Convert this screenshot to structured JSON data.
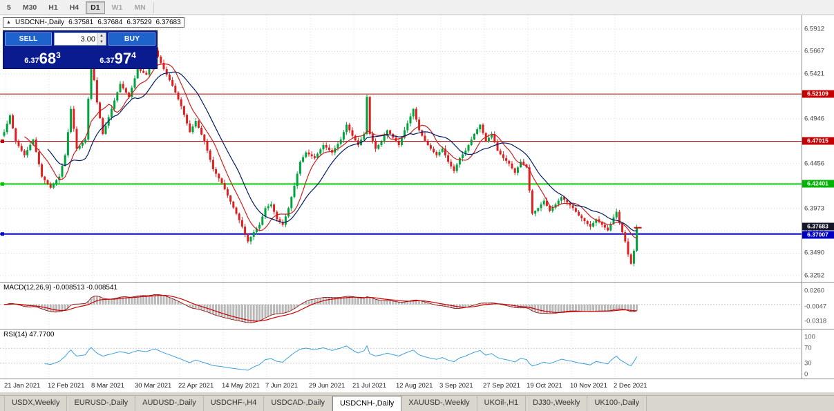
{
  "toolbar": {
    "timeframes": [
      {
        "label": "5"
      },
      {
        "label": "M30"
      },
      {
        "label": "H1"
      },
      {
        "label": "H4"
      },
      {
        "label": "D1"
      },
      {
        "label": "W1"
      },
      {
        "label": "MN"
      }
    ]
  },
  "info_bar": {
    "symbol_line": "USDCNH-,Daily",
    "open": "6.37581",
    "high": "6.37684",
    "low": "6.37529",
    "close": "6.37683"
  },
  "trade_panel": {
    "sell_label": "SELL",
    "buy_label": "BUY",
    "volume": "3.00",
    "sell_price": {
      "big": "6.37",
      "pips": "68",
      "frac": "3"
    },
    "buy_price": {
      "big": "6.37",
      "pips": "97",
      "frac": "4"
    }
  },
  "price_axis": {
    "labels": [
      "6.5912",
      "6.5667",
      "6.5421",
      "6.5176",
      "6.4946",
      "6.4701",
      "6.4456",
      "6.4210",
      "6.3973",
      "6.3725",
      "6.3490",
      "6.3252"
    ],
    "badges": [
      {
        "value": "6.52109",
        "color": "#c40000"
      },
      {
        "value": "6.47015",
        "color": "#c40000"
      },
      {
        "value": "6.42401",
        "color": "#00b400"
      },
      {
        "value": "6.37683",
        "color": "#15152a"
      },
      {
        "value": "6.37007",
        "color": "#0000c4"
      }
    ]
  },
  "macd_panel": {
    "label": "MACD(12,26,9) -0.008513 -0.008541",
    "scale_labels": [
      "0.0260",
      "-0.0047",
      "-0.0318"
    ]
  },
  "rsi_panel": {
    "label": "RSI(14) 47.7700",
    "scale_labels": [
      "100",
      "70",
      "30",
      "0"
    ]
  },
  "date_axis": {
    "labels": [
      "21 Jan 2021",
      "12 Feb 2021",
      "8 Mar 2021",
      "30 Mar 2021",
      "22 Apr 2021",
      "14 May 2021",
      "7 Jun 2021",
      "29 Jun 2021",
      "21 Jul 2021",
      "12 Aug 2021",
      "3 Sep 2021",
      "27 Sep 2021",
      "19 Oct 2021",
      "10 Nov 2021",
      "2 Dec 2021"
    ]
  },
  "tabs": {
    "items": [
      "USDX,Weekly",
      "EURUSD-,Daily",
      "AUDUSD-,Daily",
      "USDCHF-,H4",
      "USDCAD-,Daily",
      "USDCNH-,Daily",
      "XAUUSD-,Weekly",
      "UKOil-,H1",
      "DJ30-,Weekly",
      "UK100-,Daily"
    ],
    "active": "USDCNH-,Daily"
  },
  "chart_data": {
    "type": "candlestick",
    "symbol": "USDCNH-",
    "timeframe": "Daily",
    "title": "USDCNH-,Daily",
    "ohlc_current": {
      "open": 6.37581,
      "high": 6.37684,
      "low": 6.37529,
      "close": 6.37683
    },
    "y_range": [
      6.3252,
      6.5912
    ],
    "current_price": {
      "value": 6.37683,
      "color": "#15152a"
    },
    "levels": [
      {
        "price": 6.52109,
        "color": "#c40000",
        "width": 1,
        "handle": false
      },
      {
        "price": 6.47015,
        "color": "#c40000",
        "width": 1,
        "handle": true
      },
      {
        "price": 6.42401,
        "color": "#00cc00",
        "width": 2,
        "handle": true
      },
      {
        "price": 6.37007,
        "color": "#0000c4",
        "width": 2,
        "handle": true
      }
    ],
    "colors": {
      "up": "#00a33c",
      "down": "#dc2020",
      "ma_fast": "#cc2020",
      "ma_slow": "#001a66",
      "macd_hist": "#b8b8b8",
      "macd_line": "#8b0000",
      "macd_signal": "#cc0000",
      "rsi_line": "#3aa0dc",
      "grid": "#d8d8d8",
      "level_dash": "#c8c8c8"
    },
    "candle_count": 219,
    "close_anchors": [
      [
        0,
        6.48
      ],
      [
        2,
        6.498
      ],
      [
        4,
        6.47
      ],
      [
        7,
        6.455
      ],
      [
        10,
        6.472
      ],
      [
        13,
        6.432
      ],
      [
        16,
        6.42
      ],
      [
        19,
        6.432
      ],
      [
        21,
        6.455
      ],
      [
        23,
        6.505
      ],
      [
        25,
        6.462
      ],
      [
        28,
        6.472
      ],
      [
        30,
        6.56
      ],
      [
        32,
        6.512
      ],
      [
        34,
        6.478
      ],
      [
        37,
        6.505
      ],
      [
        40,
        6.532
      ],
      [
        43,
        6.518
      ],
      [
        46,
        6.548
      ],
      [
        49,
        6.542
      ],
      [
        52,
        6.568
      ],
      [
        55,
        6.548
      ],
      [
        58,
        6.53
      ],
      [
        61,
        6.508
      ],
      [
        64,
        6.48
      ],
      [
        66,
        6.492
      ],
      [
        69,
        6.47
      ],
      [
        72,
        6.44
      ],
      [
        75,
        6.425
      ],
      [
        78,
        6.405
      ],
      [
        80,
        6.392
      ],
      [
        82,
        6.378
      ],
      [
        84,
        6.362
      ],
      [
        86,
        6.372
      ],
      [
        88,
        6.38
      ],
      [
        90,
        6.398
      ],
      [
        92,
        6.402
      ],
      [
        94,
        6.386
      ],
      [
        96,
        6.38
      ],
      [
        98,
        6.398
      ],
      [
        100,
        6.422
      ],
      [
        102,
        6.448
      ],
      [
        104,
        6.458
      ],
      [
        107,
        6.452
      ],
      [
        110,
        6.466
      ],
      [
        113,
        6.458
      ],
      [
        116,
        6.472
      ],
      [
        118,
        6.488
      ],
      [
        120,
        6.476
      ],
      [
        122,
        6.466
      ],
      [
        124,
        6.478
      ],
      [
        125,
        6.518
      ],
      [
        126,
        6.478
      ],
      [
        128,
        6.462
      ],
      [
        130,
        6.47
      ],
      [
        132,
        6.482
      ],
      [
        134,
        6.474
      ],
      [
        136,
        6.466
      ],
      [
        138,
        6.482
      ],
      [
        140,
        6.497
      ],
      [
        141,
        6.505
      ],
      [
        143,
        6.482
      ],
      [
        145,
        6.47
      ],
      [
        147,
        6.462
      ],
      [
        149,
        6.455
      ],
      [
        151,
        6.462
      ],
      [
        153,
        6.448
      ],
      [
        155,
        6.438
      ],
      [
        157,
        6.452
      ],
      [
        159,
        6.46
      ],
      [
        162,
        6.478
      ],
      [
        164,
        6.488
      ],
      [
        166,
        6.47
      ],
      [
        168,
        6.478
      ],
      [
        170,
        6.46
      ],
      [
        172,
        6.452
      ],
      [
        174,
        6.446
      ],
      [
        176,
        6.436
      ],
      [
        178,
        6.448
      ],
      [
        180,
        6.442
      ],
      [
        182,
        6.392
      ],
      [
        184,
        6.398
      ],
      [
        186,
        6.406
      ],
      [
        188,
        6.395
      ],
      [
        190,
        6.402
      ],
      [
        192,
        6.41
      ],
      [
        194,
        6.404
      ],
      [
        196,
        6.398
      ],
      [
        198,
        6.39
      ],
      [
        200,
        6.384
      ],
      [
        202,
        6.378
      ],
      [
        204,
        6.386
      ],
      [
        206,
        6.38
      ],
      [
        208,
        6.374
      ],
      [
        210,
        6.388
      ],
      [
        211,
        6.394
      ],
      [
        212,
        6.382
      ],
      [
        213,
        6.372
      ],
      [
        214,
        6.362
      ],
      [
        215,
        6.348
      ],
      [
        216,
        6.338
      ],
      [
        217,
        6.352
      ],
      [
        218,
        6.3768
      ]
    ],
    "indicators": [
      {
        "name": "MACD",
        "params": "12,26,9",
        "values": [
          -0.008513,
          -0.008541
        ]
      },
      {
        "name": "RSI",
        "params": "14",
        "values": [
          47.77
        ]
      }
    ]
  }
}
